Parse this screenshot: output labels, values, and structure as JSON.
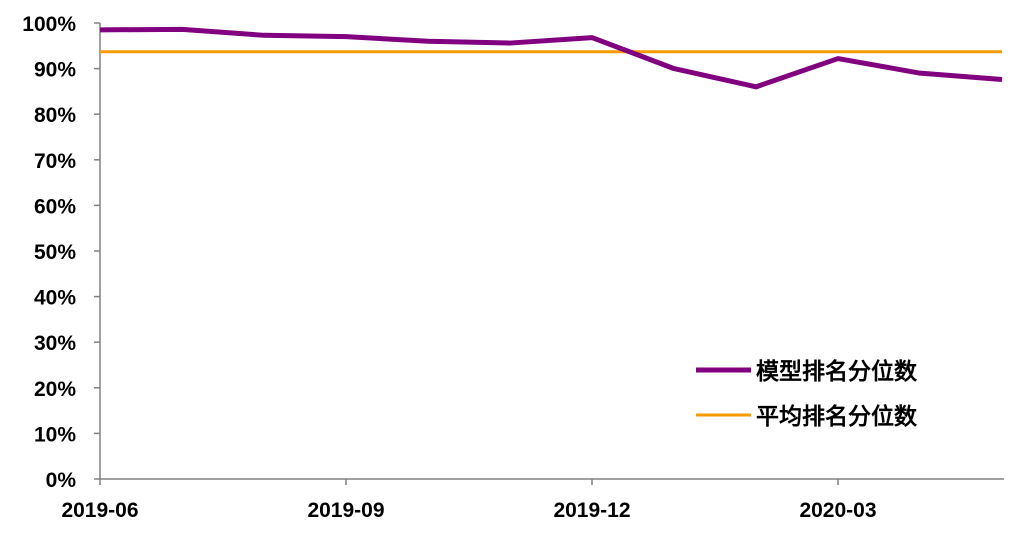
{
  "chart_data": {
    "type": "line",
    "x": [
      "2019-06",
      "2019-07",
      "2019-08",
      "2019-09",
      "2019-10",
      "2019-11",
      "2019-12",
      "2020-01",
      "2020-02",
      "2020-03",
      "2020-04",
      "2020-05"
    ],
    "x_tick_labels": [
      "2019-06",
      "2019-09",
      "2019-12",
      "2020-03"
    ],
    "y_tick_labels": [
      "0%",
      "10%",
      "20%",
      "30%",
      "40%",
      "50%",
      "60%",
      "70%",
      "80%",
      "90%",
      "100%"
    ],
    "ylim": [
      0,
      100
    ],
    "y_unit": "%",
    "grid": false,
    "legend_position": "bottom-right",
    "series": [
      {
        "name": "模型排名分位数",
        "color": "#800080",
        "values": [
          98.5,
          98.6,
          97.3,
          97.0,
          96.0,
          95.6,
          96.8,
          90.0,
          86.0,
          92.2,
          89.0,
          87.6
        ]
      },
      {
        "name": "平均排名分位数",
        "color": "#f59a00",
        "values": [
          93.7,
          93.7,
          93.7,
          93.7,
          93.7,
          93.7,
          93.7,
          93.7,
          93.7,
          93.7,
          93.7,
          93.7
        ]
      }
    ]
  }
}
